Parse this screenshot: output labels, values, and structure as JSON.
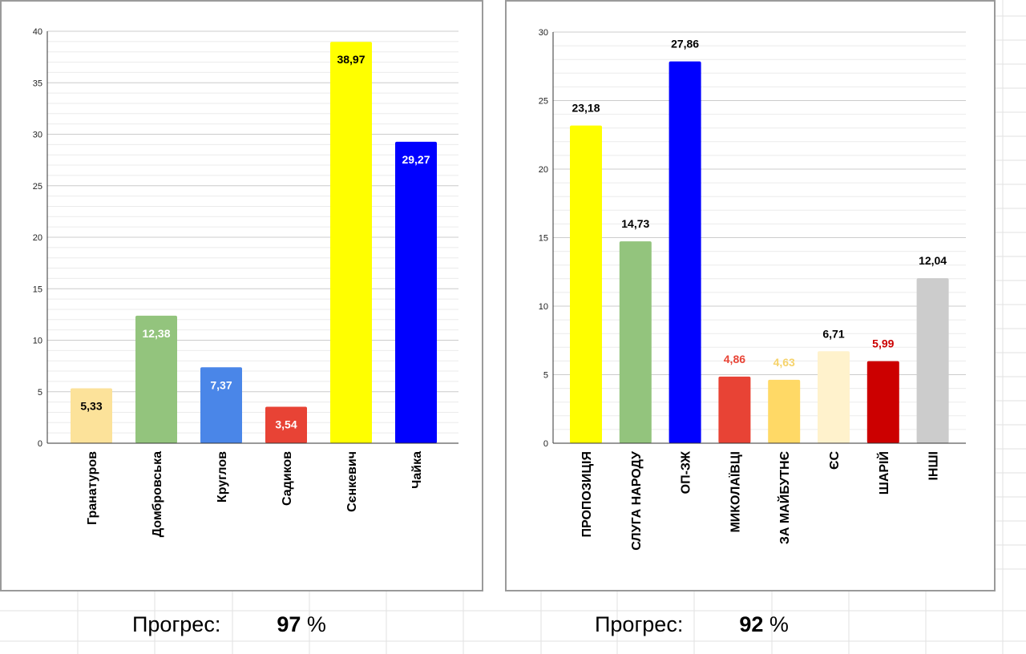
{
  "chart_data": [
    {
      "type": "bar",
      "title": "",
      "xlabel": "",
      "ylabel": "",
      "ylim": [
        0,
        40
      ],
      "yticks": [
        0,
        5,
        10,
        15,
        20,
        25,
        30,
        35,
        40
      ],
      "minor_grid_step": 1,
      "grid": true,
      "categories": [
        "Гранатуров",
        "Домбровська",
        "Круглов",
        "Садиков",
        "Сєнкевич",
        "Чайка"
      ],
      "values": [
        5.33,
        12.38,
        7.37,
        3.54,
        38.97,
        29.27
      ],
      "data_labels": [
        "5,33",
        "12,38",
        "7,37",
        "3,54",
        "38,97",
        "29,27"
      ],
      "colors": [
        "#fce29a",
        "#93c47d",
        "#4a86e8",
        "#e84335",
        "#ffff00",
        "#0000ff"
      ],
      "label_colors": [
        "#000000",
        "#ffffff",
        "#ffffff",
        "#ffffff",
        "#000000",
        "#ffffff"
      ],
      "label_position": "inside-top"
    },
    {
      "type": "bar",
      "title": "",
      "xlabel": "",
      "ylabel": "",
      "ylim": [
        0,
        30
      ],
      "yticks": [
        0,
        5,
        10,
        15,
        20,
        25,
        30
      ],
      "minor_grid_step": 1,
      "grid": true,
      "categories": [
        "ПРОПОЗИЦІЯ",
        "СЛУГА НАРОДУ",
        "ОП-ЗЖ",
        "МИКОЛАЇВЦІ",
        "ЗА МАЙБУТНЄ",
        "ЄС",
        "ШАРІЙ",
        "ІНШІ"
      ],
      "values": [
        23.18,
        14.73,
        27.86,
        4.86,
        4.63,
        6.71,
        5.99,
        12.04
      ],
      "data_labels": [
        "23,18",
        "14,73",
        "27,86",
        "4,86",
        "4,63",
        "6,71",
        "5,99",
        "12,04"
      ],
      "colors": [
        "#ffff00",
        "#93c47d",
        "#0000ff",
        "#e84335",
        "#ffd966",
        "#fff2cc",
        "#cc0000",
        "#cccccc"
      ],
      "label_colors": [
        "#000000",
        "#000000",
        "#000000",
        "#e84335",
        "#f6d36b",
        "#000000",
        "#cc0000",
        "#000000"
      ],
      "label_position": "outside-top"
    }
  ],
  "progress": [
    {
      "label": "Прогрес:",
      "value": "97",
      "unit": "%"
    },
    {
      "label": "Прогрес:",
      "value": "92",
      "unit": "%"
    }
  ]
}
